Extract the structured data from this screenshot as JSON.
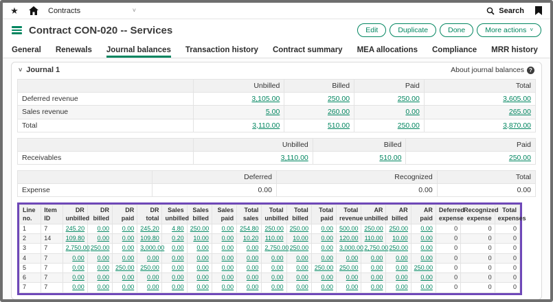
{
  "colors": {
    "accent_green": "#00855f",
    "highlight_purple": "#6e48b8"
  },
  "top_bar": {
    "nav_label": "Contracts",
    "search_label": "Search"
  },
  "title_bar": {
    "title": "Contract CON-020 -- Services",
    "buttons": {
      "edit": "Edit",
      "duplicate": "Duplicate",
      "done": "Done",
      "more_actions": "More actions"
    }
  },
  "tabs": [
    "General",
    "Renewals",
    "Journal balances",
    "Transaction history",
    "Contract summary",
    "MEA allocations",
    "Compliance",
    "MRR history"
  ],
  "active_tab": "Journal balances",
  "journal_section": {
    "title": "Journal 1",
    "about_link": "About journal balances"
  },
  "tables": {
    "revenue": {
      "headers": [
        "",
        "Unbilled",
        "Billed",
        "Paid",
        "Total"
      ],
      "link_cols": [
        1,
        2,
        3,
        4
      ],
      "rows": [
        [
          "Deferred revenue",
          "3,105.00",
          "250.00",
          "250.00",
          "3,605.00"
        ],
        [
          "Sales revenue",
          "5.00",
          "260.00",
          "0.00",
          "265.00"
        ],
        [
          "Total",
          "3,110.00",
          "510.00",
          "250.00",
          "3,870.00"
        ]
      ]
    },
    "receivables": {
      "headers": [
        "",
        "Unbilled",
        "Billed",
        "Paid"
      ],
      "link_cols": [
        1,
        2,
        3
      ],
      "rows": [
        [
          "Receivables",
          "3,110.00",
          "510.00",
          "250.00"
        ]
      ]
    },
    "expense": {
      "headers": [
        "",
        "Deferred",
        "Recognized",
        "Total"
      ],
      "link_cols": [],
      "rows": [
        [
          "Expense",
          "0.00",
          "0.00",
          "0.00"
        ]
      ]
    },
    "journal_detail": {
      "headers": [
        "Line no.",
        "Item ID",
        "DR unbilled",
        "DR billed",
        "DR paid",
        "DR total",
        "Sales unbilled",
        "Sales billed",
        "Sales paid",
        "Total sales",
        "Total unbilled",
        "Total billed",
        "Total paid",
        "Total revenue",
        "AR unbilled",
        "AR billed",
        "AR paid",
        "Deferred expense",
        "Recognized expense",
        "Total expenses"
      ],
      "link_cols": [
        2,
        3,
        4,
        5,
        6,
        7,
        8,
        9,
        10,
        11,
        12,
        13,
        14,
        15,
        16
      ],
      "rows": [
        [
          "1",
          "7",
          "245.20",
          "0.00",
          "0.00",
          "245.20",
          "4.80",
          "250.00",
          "0.00",
          "254.80",
          "250.00",
          "250.00",
          "0.00",
          "500.00",
          "250.00",
          "250.00",
          "0.00",
          "0",
          "0",
          "0"
        ],
        [
          "2",
          "14",
          "109.80",
          "0.00",
          "0.00",
          "109.80",
          "0.20",
          "10.00",
          "0.00",
          "10.20",
          "110.00",
          "10.00",
          "0.00",
          "120.00",
          "110.00",
          "10.00",
          "0.00",
          "0",
          "0",
          "0"
        ],
        [
          "3",
          "7",
          "2,750.00",
          "250.00",
          "0.00",
          "3,000.00",
          "0.00",
          "0.00",
          "0.00",
          "0.00",
          "2,750.00",
          "250.00",
          "0.00",
          "3,000.00",
          "2,750.00",
          "250.00",
          "0.00",
          "0",
          "0",
          "0"
        ],
        [
          "4",
          "7",
          "0.00",
          "0.00",
          "0.00",
          "0.00",
          "0.00",
          "0.00",
          "0.00",
          "0.00",
          "0.00",
          "0.00",
          "0.00",
          "0.00",
          "0.00",
          "0.00",
          "0.00",
          "0",
          "0",
          "0"
        ],
        [
          "5",
          "7",
          "0.00",
          "0.00",
          "250.00",
          "250.00",
          "0.00",
          "0.00",
          "0.00",
          "0.00",
          "0.00",
          "0.00",
          "250.00",
          "250.00",
          "0.00",
          "0.00",
          "250.00",
          "0",
          "0",
          "0"
        ],
        [
          "6",
          "7",
          "0.00",
          "0.00",
          "0.00",
          "0.00",
          "0.00",
          "0.00",
          "0.00",
          "0.00",
          "0.00",
          "0.00",
          "0.00",
          "0.00",
          "0.00",
          "0.00",
          "0.00",
          "0",
          "0",
          "0"
        ],
        [
          "7",
          "7",
          "0.00",
          "0.00",
          "0.00",
          "0.00",
          "0.00",
          "0.00",
          "0.00",
          "0.00",
          "0.00",
          "0.00",
          "0.00",
          "0.00",
          "0.00",
          "0.00",
          "0.00",
          "0",
          "0",
          "0"
        ]
      ]
    }
  }
}
